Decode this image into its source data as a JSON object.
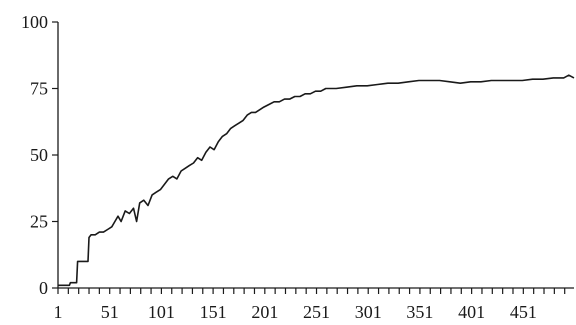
{
  "chart_data": {
    "type": "line",
    "title": "",
    "xlabel": "",
    "ylabel": "",
    "xlim": [
      1,
      500
    ],
    "ylim": [
      0,
      100
    ],
    "grid": false,
    "legend": "none",
    "y_ticks": [
      0,
      25,
      50,
      75,
      100
    ],
    "x_tick_labels": [
      1,
      51,
      101,
      151,
      201,
      251,
      301,
      351,
      401,
      451
    ],
    "x_minor_tick_step": 10,
    "line_color": "#1a1a1a",
    "series": [
      {
        "values": [
          [
            1,
            1
          ],
          [
            12,
            1
          ],
          [
            13,
            2
          ],
          [
            19,
            2
          ],
          [
            20,
            10
          ],
          [
            30,
            10
          ],
          [
            31,
            19
          ],
          [
            33,
            20
          ],
          [
            37,
            20
          ],
          [
            41,
            21
          ],
          [
            45,
            21
          ],
          [
            49,
            22
          ],
          [
            53,
            23
          ],
          [
            56,
            25
          ],
          [
            59,
            27
          ],
          [
            62,
            25
          ],
          [
            66,
            29
          ],
          [
            70,
            28
          ],
          [
            74,
            30
          ],
          [
            77,
            25
          ],
          [
            80,
            32
          ],
          [
            84,
            33
          ],
          [
            88,
            31
          ],
          [
            92,
            35
          ],
          [
            96,
            36
          ],
          [
            100,
            37
          ],
          [
            104,
            39
          ],
          [
            108,
            41
          ],
          [
            112,
            42
          ],
          [
            116,
            41
          ],
          [
            120,
            44
          ],
          [
            124,
            45
          ],
          [
            128,
            46
          ],
          [
            132,
            47
          ],
          [
            136,
            49
          ],
          [
            140,
            48
          ],
          [
            144,
            51
          ],
          [
            148,
            53
          ],
          [
            152,
            52
          ],
          [
            156,
            55
          ],
          [
            160,
            57
          ],
          [
            164,
            58
          ],
          [
            168,
            60
          ],
          [
            172,
            61
          ],
          [
            176,
            62
          ],
          [
            180,
            63
          ],
          [
            184,
            65
          ],
          [
            188,
            66
          ],
          [
            192,
            66
          ],
          [
            196,
            67
          ],
          [
            200,
            68
          ],
          [
            205,
            69
          ],
          [
            210,
            70
          ],
          [
            215,
            70
          ],
          [
            220,
            71
          ],
          [
            225,
            71
          ],
          [
            230,
            72
          ],
          [
            235,
            72
          ],
          [
            240,
            73
          ],
          [
            245,
            73
          ],
          [
            250,
            74
          ],
          [
            255,
            74
          ],
          [
            260,
            75
          ],
          [
            270,
            75
          ],
          [
            280,
            75.5
          ],
          [
            290,
            76
          ],
          [
            300,
            76
          ],
          [
            310,
            76.5
          ],
          [
            320,
            77
          ],
          [
            330,
            77
          ],
          [
            340,
            77.5
          ],
          [
            350,
            78
          ],
          [
            360,
            78
          ],
          [
            370,
            78
          ],
          [
            380,
            77.5
          ],
          [
            390,
            77
          ],
          [
            400,
            77.5
          ],
          [
            410,
            77.5
          ],
          [
            420,
            78
          ],
          [
            430,
            78
          ],
          [
            440,
            78
          ],
          [
            450,
            78
          ],
          [
            460,
            78.5
          ],
          [
            470,
            78.5
          ],
          [
            480,
            79
          ],
          [
            490,
            79
          ],
          [
            495,
            80
          ],
          [
            500,
            79
          ]
        ]
      }
    ]
  }
}
